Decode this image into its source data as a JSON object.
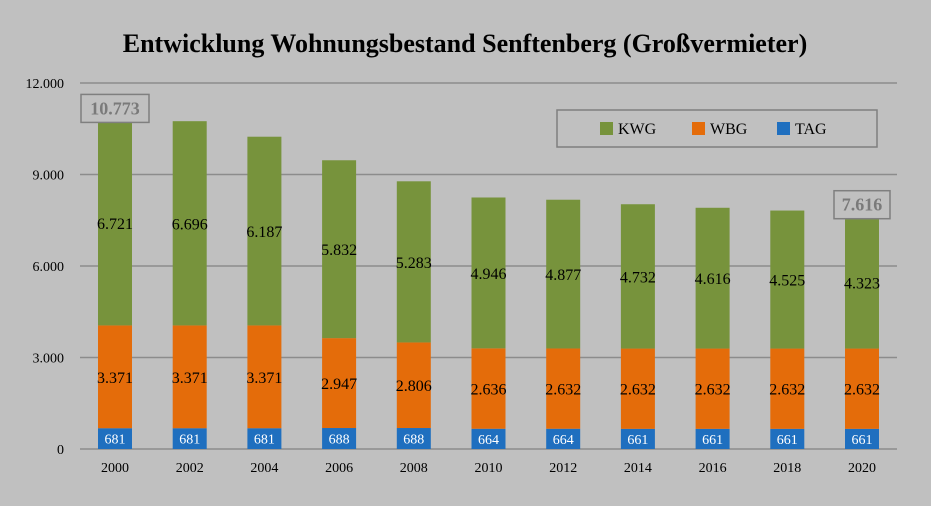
{
  "colors": {
    "KWG": "#77933c",
    "WBG": "#e46c0a",
    "TAG": "#1f6fbf",
    "background": "#c0c0c0",
    "grid": "#8c8c8c"
  },
  "chart_data": {
    "type": "bar",
    "stacked": true,
    "title": "Entwicklung Wohnungsbestand Senftenberg (Großvermieter)",
    "xlabel": "",
    "ylabel": "",
    "ylim": [
      0,
      12000
    ],
    "yticks": [
      0,
      3000,
      6000,
      9000,
      12000
    ],
    "ytick_labels": [
      "0",
      "3.000",
      "6.000",
      "9.000",
      "12.000"
    ],
    "grid": true,
    "legend_position": "top-right",
    "categories": [
      "2000",
      "2002",
      "2004",
      "2006",
      "2008",
      "2010",
      "2012",
      "2014",
      "2016",
      "2018",
      "2020"
    ],
    "series": [
      {
        "name": "TAG",
        "values": [
          681,
          681,
          681,
          688,
          688,
          664,
          664,
          661,
          661,
          661,
          661
        ],
        "labels": [
          "681",
          "681",
          "681",
          "688",
          "688",
          "664",
          "664",
          "661",
          "661",
          "661",
          "661"
        ]
      },
      {
        "name": "WBG",
        "values": [
          3371,
          3371,
          3371,
          2947,
          2806,
          2636,
          2632,
          2632,
          2632,
          2632,
          2632
        ],
        "labels": [
          "3.371",
          "3.371",
          "3.371",
          "2.947",
          "2.806",
          "2.636",
          "2.632",
          "2.632",
          "2.632",
          "2.632",
          "2.632"
        ]
      },
      {
        "name": "KWG",
        "values": [
          6721,
          6696,
          6187,
          5832,
          5283,
          4946,
          4877,
          4732,
          4616,
          4525,
          4323
        ],
        "labels": [
          "6.721",
          "6.696",
          "6.187",
          "5.832",
          "5.283",
          "4.946",
          "4.877",
          "4.732",
          "4.616",
          "4.525",
          "4.323"
        ]
      }
    ],
    "legend_order": [
      "KWG",
      "WBG",
      "TAG"
    ],
    "annotations": [
      {
        "category": "2000",
        "value": 10773,
        "text": "10.773"
      },
      {
        "category": "2020",
        "value": 7616,
        "text": "7.616"
      }
    ]
  }
}
